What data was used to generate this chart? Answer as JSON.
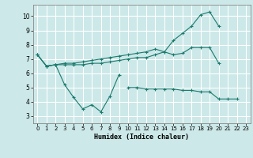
{
  "background_color": "#cce8e8",
  "grid_color": "#ffffff",
  "line_color": "#1a7a6e",
  "xlabel": "Humidex (Indice chaleur)",
  "xlim": [
    -0.5,
    23.5
  ],
  "ylim": [
    2.5,
    10.8
  ],
  "xticks": [
    0,
    1,
    2,
    3,
    4,
    5,
    6,
    7,
    8,
    9,
    10,
    11,
    12,
    13,
    14,
    15,
    16,
    17,
    18,
    19,
    20,
    21,
    22,
    23
  ],
  "yticks": [
    3,
    4,
    5,
    6,
    7,
    8,
    9,
    10
  ],
  "series": [
    {
      "x": [
        0,
        1,
        2,
        3,
        4,
        5,
        6,
        7,
        8,
        9
      ],
      "y": [
        7.3,
        6.5,
        6.6,
        5.2,
        4.3,
        3.5,
        3.8,
        3.3,
        4.4,
        5.9
      ]
    },
    {
      "x": [
        0,
        1,
        2,
        3,
        4,
        5,
        6,
        7,
        8,
        9,
        10,
        11,
        12,
        13,
        14,
        15,
        16,
        17,
        18,
        19,
        20
      ],
      "y": [
        7.3,
        6.5,
        6.6,
        6.6,
        6.6,
        6.6,
        6.7,
        6.7,
        6.8,
        6.9,
        7.0,
        7.1,
        7.1,
        7.3,
        7.5,
        7.3,
        7.4,
        7.8,
        7.8,
        7.8,
        6.7
      ]
    },
    {
      "x": [
        0,
        1,
        2,
        3,
        4,
        5,
        6,
        7,
        8,
        9,
        10,
        11,
        12,
        13,
        14,
        15,
        16,
        17,
        18,
        19,
        20
      ],
      "y": [
        7.3,
        6.5,
        6.6,
        6.7,
        6.7,
        6.8,
        6.9,
        7.0,
        7.1,
        7.2,
        7.3,
        7.4,
        7.5,
        7.7,
        7.5,
        8.3,
        8.8,
        9.3,
        10.1,
        10.3,
        9.3
      ]
    },
    {
      "x": [
        10,
        11,
        12,
        13,
        14,
        15,
        16,
        17,
        18,
        19,
        20,
        21,
        22
      ],
      "y": [
        5.0,
        5.0,
        4.9,
        4.9,
        4.9,
        4.9,
        4.8,
        4.8,
        4.7,
        4.7,
        4.2,
        4.2,
        4.2
      ]
    }
  ]
}
